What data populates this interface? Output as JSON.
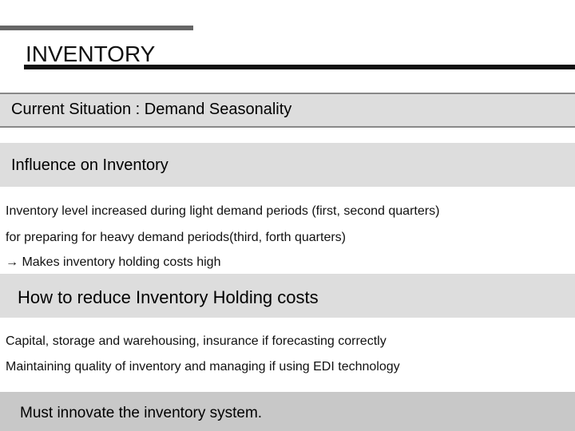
{
  "header": {
    "title": "INVENTORY"
  },
  "sections": [
    {
      "heading": "Current Situation :  Demand Seasonality"
    },
    {
      "heading": "Influence on Inventory",
      "lines": [
        "Inventory level increased during light demand periods (first, second quarters)",
        "for preparing for heavy demand periods(third, forth quarters)",
        "→ Makes inventory holding costs high"
      ]
    },
    {
      "heading": "How to reduce Inventory Holding costs",
      "lines": [
        "Capital, storage and warehousing, insurance if forecasting correctly",
        "Maintaining quality of inventory and managing if using EDI technology"
      ]
    },
    {
      "heading": "Must innovate the inventory system."
    }
  ]
}
